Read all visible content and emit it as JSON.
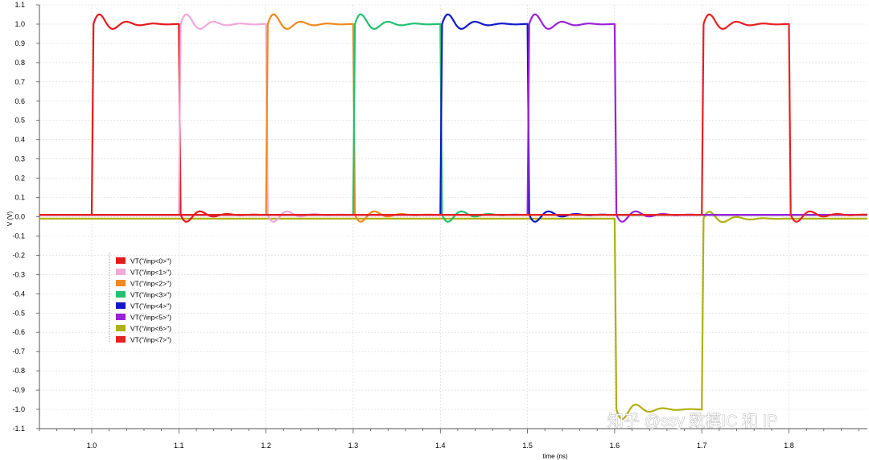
{
  "chart_data": {
    "type": "line",
    "title": "",
    "xlabel": "time (ns)",
    "ylabel": "V (V)",
    "xlim": [
      0.94,
      1.89
    ],
    "ylim": [
      -1.1,
      1.1
    ],
    "x_ticks": [
      1.0,
      1.1,
      1.2,
      1.3,
      1.4,
      1.5,
      1.6,
      1.7,
      1.8
    ],
    "x_tick_labels": [
      "1.0",
      "1.1",
      "1.2",
      "1.3",
      "1.4",
      "1.5",
      "1.6",
      "1.7",
      "1.8"
    ],
    "y_ticks": [
      1.1,
      1.0,
      0.9,
      0.8,
      0.7,
      0.6,
      0.5,
      0.4,
      0.3,
      0.2,
      0.1,
      0.0,
      -0.1,
      -0.2,
      -0.3,
      -0.4,
      -0.5,
      -0.6,
      -0.7,
      -0.8,
      -0.9,
      -1.0,
      -1.1
    ],
    "y_tick_labels": [
      "1.1",
      "1.0",
      "0.9",
      "0.8",
      "0.7",
      "0.6",
      "0.5",
      "0.4",
      "0.3",
      "0.2",
      "0.1",
      "0.0",
      "-0.1",
      "-0.2",
      "-0.3",
      "-0.4",
      "-0.5",
      "-0.6",
      "-0.7",
      "-0.8",
      "-0.9",
      "-1.0",
      "-1.1"
    ],
    "grid": true,
    "legend_position": "left-middle",
    "series": [
      {
        "name": "VT(\"/inp<0>\")",
        "color": "#e31a1c",
        "baseline": 0.01,
        "pulses": [
          {
            "start": 1.0,
            "end": 1.1,
            "level": 1.0
          }
        ]
      },
      {
        "name": "VT(\"/inp<1>\")",
        "color": "#f0a8d8",
        "baseline": 0.01,
        "pulses": [
          {
            "start": 1.1,
            "end": 1.2,
            "level": 1.0
          }
        ]
      },
      {
        "name": "VT(\"/inp<2>\")",
        "color": "#f08a1c",
        "baseline": 0.01,
        "pulses": [
          {
            "start": 1.2,
            "end": 1.3,
            "level": 1.0
          }
        ]
      },
      {
        "name": "VT(\"/inp<3>\")",
        "color": "#22c070",
        "baseline": 0.01,
        "pulses": [
          {
            "start": 1.3,
            "end": 1.4,
            "level": 1.0
          }
        ]
      },
      {
        "name": "VT(\"/inp<4>\")",
        "color": "#1018c8",
        "baseline": 0.01,
        "pulses": [
          {
            "start": 1.4,
            "end": 1.5,
            "level": 1.0
          }
        ]
      },
      {
        "name": "VT(\"/inp<5>\")",
        "color": "#9a22d8",
        "baseline": 0.01,
        "pulses": [
          {
            "start": 1.5,
            "end": 1.6,
            "level": 1.0
          }
        ]
      },
      {
        "name": "VT(\"/inp<6>\")",
        "color": "#b0b010",
        "baseline": -0.01,
        "pulses": [
          {
            "start": 1.6,
            "end": 1.7,
            "level": -1.0
          }
        ]
      },
      {
        "name": "VT(\"/inp<7>\")",
        "color": "#e82020",
        "baseline": 0.01,
        "pulses": [
          {
            "start": 1.7,
            "end": 1.8,
            "level": 1.0
          }
        ]
      }
    ]
  },
  "watermark": "知乎 @ssy 数模IC 和 IP"
}
